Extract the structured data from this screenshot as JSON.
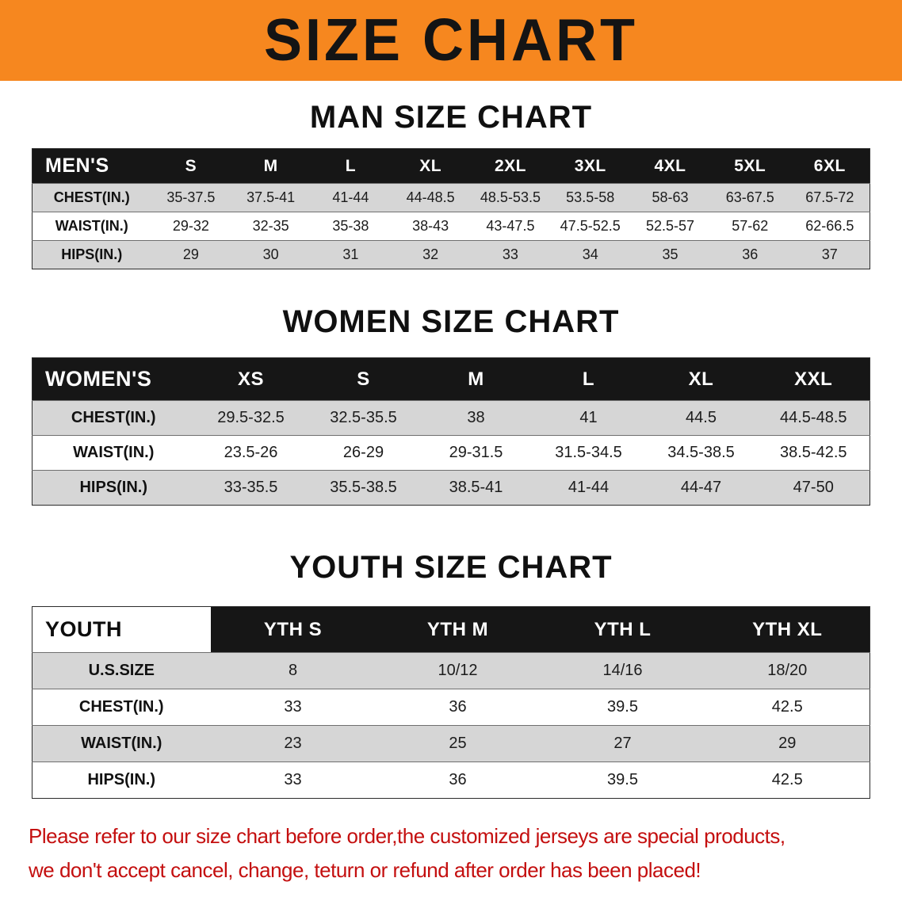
{
  "banner": {
    "title": "SIZE CHART"
  },
  "colors": {
    "banner_bg": "#f6871f",
    "table_header_bg": "#161616",
    "row_alt_bg": "#d6d6d6",
    "disclaimer_red": "#c40f0f"
  },
  "sections": [
    {
      "key": "men",
      "heading": "MAN SIZE CHART",
      "table": {
        "header": [
          "MEN'S",
          "S",
          "M",
          "L",
          "XL",
          "2XL",
          "3XL",
          "4XL",
          "5XL",
          "6XL"
        ],
        "rows": [
          [
            "CHEST(IN.)",
            "35-37.5",
            "37.5-41",
            "41-44",
            "44-48.5",
            "48.5-53.5",
            "53.5-58",
            "58-63",
            "63-67.5",
            "67.5-72"
          ],
          [
            "WAIST(IN.)",
            "29-32",
            "32-35",
            "35-38",
            "38-43",
            "43-47.5",
            "47.5-52.5",
            "52.5-57",
            "57-62",
            "62-66.5"
          ],
          [
            "HIPS(IN.)",
            "29",
            "30",
            "31",
            "32",
            "33",
            "34",
            "35",
            "36",
            "37"
          ]
        ]
      }
    },
    {
      "key": "women",
      "heading": "WOMEN SIZE CHART",
      "table": {
        "header": [
          "WOMEN'S",
          "XS",
          "S",
          "M",
          "L",
          "XL",
          "XXL"
        ],
        "rows": [
          [
            "CHEST(IN.)",
            "29.5-32.5",
            "32.5-35.5",
            "38",
            "41",
            "44.5",
            "44.5-48.5"
          ],
          [
            "WAIST(IN.)",
            "23.5-26",
            "26-29",
            "29-31.5",
            "31.5-34.5",
            "34.5-38.5",
            "38.5-42.5"
          ],
          [
            "HIPS(IN.)",
            "33-35.5",
            "35.5-38.5",
            "38.5-41",
            "41-44",
            "44-47",
            "47-50"
          ]
        ]
      }
    },
    {
      "key": "youth",
      "heading": "YOUTH SIZE CHART",
      "table": {
        "header": [
          "YOUTH",
          "YTH S",
          "YTH M",
          "YTH L",
          "YTH XL"
        ],
        "rows": [
          [
            "U.S.SIZE",
            "8",
            "10/12",
            "14/16",
            "18/20"
          ],
          [
            "CHEST(IN.)",
            "33",
            "36",
            "39.5",
            "42.5"
          ],
          [
            "WAIST(IN.)",
            "23",
            "25",
            "27",
            "29"
          ],
          [
            "HIPS(IN.)",
            "33",
            "36",
            "39.5",
            "42.5"
          ]
        ]
      }
    }
  ],
  "disclaimer": {
    "line1": "Please refer to our size chart before order,the customized jerseys are special products,",
    "line2": "we don't accept cancel, change, teturn or refund after order has been placed!"
  }
}
